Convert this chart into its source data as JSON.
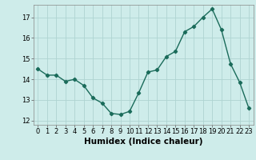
{
  "x": [
    0,
    1,
    2,
    3,
    4,
    5,
    6,
    7,
    8,
    9,
    10,
    11,
    12,
    13,
    14,
    15,
    16,
    17,
    18,
    19,
    20,
    21,
    22,
    23
  ],
  "y": [
    14.5,
    14.2,
    14.2,
    13.9,
    14.0,
    13.7,
    13.1,
    12.85,
    12.35,
    12.3,
    12.45,
    13.35,
    14.35,
    14.45,
    15.1,
    15.35,
    16.3,
    16.55,
    17.0,
    17.4,
    16.4,
    14.75,
    13.85,
    12.6
  ],
  "line_color": "#1a6b5a",
  "marker": "D",
  "marker_size": 2.2,
  "bg_color": "#ceecea",
  "grid_color": "#aed4d1",
  "xlabel": "Humidex (Indice chaleur)",
  "xlim": [
    -0.5,
    23.5
  ],
  "ylim": [
    11.8,
    17.6
  ],
  "yticks": [
    12,
    13,
    14,
    15,
    16,
    17
  ],
  "xticks": [
    0,
    1,
    2,
    3,
    4,
    5,
    6,
    7,
    8,
    9,
    10,
    11,
    12,
    13,
    14,
    15,
    16,
    17,
    18,
    19,
    20,
    21,
    22,
    23
  ],
  "tick_fontsize": 6,
  "xlabel_fontsize": 7.5,
  "line_width": 1.0
}
